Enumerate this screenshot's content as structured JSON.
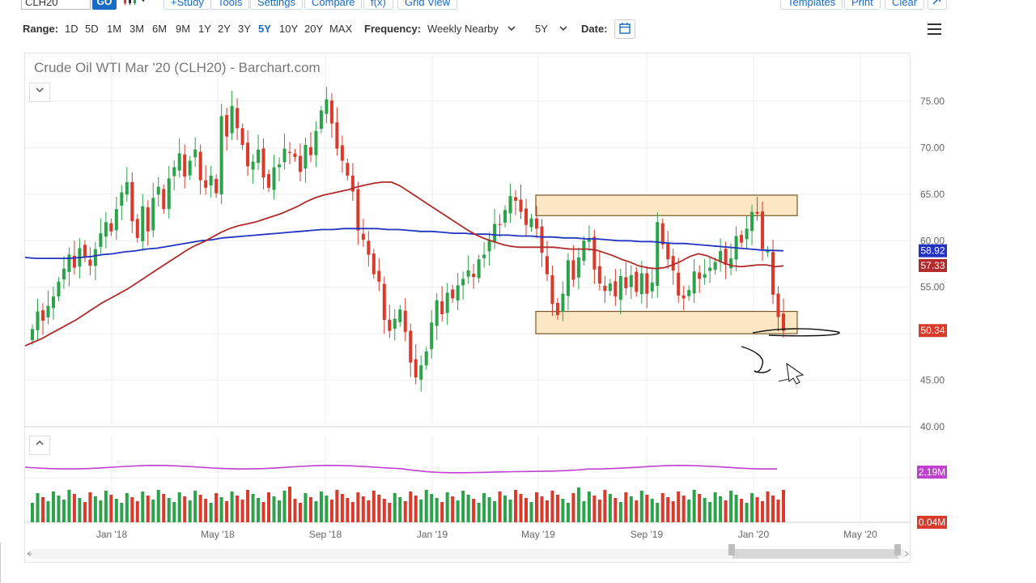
{
  "toolbar": {
    "symbol": "CLH20",
    "go": "GO",
    "buttons": [
      "+Study",
      "Tools",
      "Settings",
      "Compare",
      "f(x)",
      "Grid View"
    ],
    "right_buttons": [
      "Templates",
      "Print",
      "Clear"
    ]
  },
  "rangebar": {
    "range_label": "Range:",
    "ranges": [
      "1D",
      "5D",
      "1M",
      "3M",
      "6M",
      "9M",
      "1Y",
      "2Y",
      "3Y",
      "5Y",
      "10Y",
      "20Y",
      "MAX"
    ],
    "active_range": "5Y",
    "frequency_label": "Frequency:",
    "frequency_value": "Weekly Nearby",
    "period_value": "5Y",
    "date_label": "Date:"
  },
  "colors": {
    "up": "#2ca24a",
    "down": "#d93a2b",
    "ma_short": "#b22a2a",
    "ma_long": "#2233c4",
    "volume_ma": "#c040d0",
    "zone": "#fbe7c4",
    "accent": "#1a6bc4"
  },
  "chart_data": {
    "type": "candlestick",
    "title": "Crude Oil WTI Mar '20 (CLH20) - Barchart.com",
    "x_ticks": [
      "Jan '18",
      "May '18",
      "Sep '18",
      "Jan '19",
      "May '19",
      "Sep '19",
      "Jan '20",
      "May '20"
    ],
    "y_ticks": [
      40.0,
      45.0,
      50.0,
      55.0,
      60.0,
      65.0,
      70.0,
      75.0
    ],
    "ylim": [
      40,
      79
    ],
    "price_labels": [
      {
        "value": 58.92,
        "text": "58.92",
        "color": "#2233c4"
      },
      {
        "value": 57.33,
        "text": "57.33",
        "color": "#b22a2a"
      },
      {
        "value": 50.34,
        "text": "50.34",
        "color": "#d93a2b"
      }
    ],
    "closes": [
      50.5,
      52.4,
      51.4,
      53.0,
      54.0,
      55.6,
      57.0,
      58.5,
      57.1,
      59.2,
      58.2,
      57.3,
      59.1,
      60.8,
      62.0,
      61.0,
      63.4,
      65.2,
      66.3,
      62.1,
      60.3,
      63.7,
      61.0,
      64.6,
      65.8,
      63.4,
      66.7,
      67.9,
      69.4,
      66.9,
      68.6,
      69.8,
      66.5,
      65.7,
      67.0,
      65.1,
      73.4,
      71.2,
      74.5,
      72.1,
      70.3,
      68.0,
      68.5,
      69.8,
      66.8,
      65.7,
      67.9,
      68.2,
      69.9,
      69.5,
      69.0,
      67.4,
      70.3,
      69.2,
      71.8,
      74.0,
      75.2,
      72.6,
      69.9,
      68.6,
      67.0,
      65.3,
      61.1,
      60.1,
      58.5,
      56.4,
      55.6,
      51.5,
      50.3,
      51.6,
      52.6,
      50.2,
      46.9,
      45.3,
      46.6,
      48.1,
      51.2,
      53.6,
      52.1,
      54.4,
      53.8,
      55.2,
      55.9,
      56.8,
      56.1,
      58.0,
      58.5,
      60.1,
      61.8,
      61.7,
      63.3,
      64.8,
      64.3,
      63.1,
      61.7,
      62.4,
      61.3,
      58.7,
      56.4,
      53.2,
      52.0,
      54.3,
      57.9,
      55.8,
      58.2,
      60.0,
      60.3,
      56.9,
      55.4,
      54.6,
      55.4,
      54.0,
      56.2,
      54.9,
      56.3,
      54.5,
      56.5,
      54.3,
      55.5,
      62.0,
      59.6,
      58.0,
      56.8,
      54.1,
      53.8,
      54.7,
      56.7,
      55.9,
      56.4,
      57.1,
      57.7,
      58.9,
      57.4,
      58.1,
      60.5,
      59.8,
      61.3,
      63.1,
      62.9,
      59.1,
      58.9,
      54.2,
      51.8,
      50.3
    ],
    "ma_short": [
      48.7,
      49.1,
      49.5,
      50.0,
      50.5,
      51.0,
      51.5,
      52.1,
      52.7,
      53.3,
      53.8,
      54.3,
      54.8,
      55.4,
      56.0,
      56.6,
      57.2,
      57.8,
      58.4,
      59.0,
      59.5,
      59.9,
      60.4,
      60.9,
      61.3,
      61.6,
      61.8,
      62.0,
      62.3,
      62.6,
      62.9,
      63.3,
      63.7,
      64.2,
      64.6,
      64.9,
      65.1,
      65.3,
      65.5,
      65.8,
      66.0,
      66.2,
      66.3,
      66.3,
      65.9,
      65.3,
      64.7,
      64.1,
      63.5,
      62.9,
      62.3,
      61.7,
      61.1,
      60.6,
      60.2,
      59.9,
      59.6,
      59.4,
      59.3,
      59.3,
      59.3,
      59.3,
      59.3,
      59.2,
      59.1,
      59.1,
      59.1,
      59.0,
      58.7,
      58.4,
      58.0,
      57.7,
      57.3,
      57.1,
      57.0,
      57.1,
      57.4,
      57.8,
      58.3,
      58.6,
      58.4,
      58.0,
      57.6,
      57.3,
      57.2,
      57.3,
      57.4,
      57.4,
      57.2,
      57.3
    ],
    "ma_long": [
      58.2,
      58.1,
      58.1,
      58.1,
      58.1,
      58.2,
      58.3,
      58.5,
      58.6,
      58.8,
      58.9,
      59.1,
      59.2,
      59.4,
      59.6,
      59.8,
      60.0,
      60.1,
      60.3,
      60.4,
      60.5,
      60.6,
      60.7,
      60.8,
      60.9,
      61.0,
      61.1,
      61.2,
      61.2,
      61.3,
      61.3,
      61.3,
      61.3,
      61.2,
      61.2,
      61.1,
      61.0,
      61.0,
      60.9,
      60.8,
      60.8,
      60.7,
      60.7,
      60.6,
      60.6,
      60.5,
      60.5,
      60.4,
      60.4,
      60.3,
      60.3,
      60.2,
      60.2,
      60.1,
      60.0,
      60.0,
      59.9,
      59.9,
      59.8,
      59.7,
      59.7,
      59.6,
      59.5,
      59.4,
      59.3,
      59.2,
      59.1,
      59.0,
      58.95,
      58.92
    ],
    "zones": [
      {
        "x_start": "May '19",
        "x_end": "Jan '20",
        "low": 62.7,
        "high": 64.9
      },
      {
        "x_start": "May '19",
        "x_end": "Jan '20",
        "low": 50.0,
        "high": 52.4
      }
    ],
    "volume": {
      "labels": [
        {
          "text": "2.19M",
          "color": "#c040d0"
        },
        {
          "text": "0.04M",
          "color": "#d93a2b"
        }
      ]
    }
  }
}
